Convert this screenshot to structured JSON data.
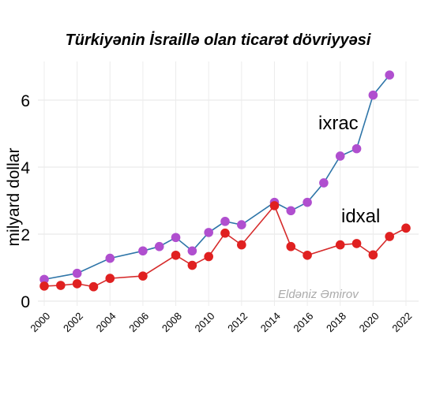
{
  "chart_data": {
    "type": "line",
    "title": "Türkiyənin İsraillə olan ticarət dövriyyəsi",
    "xlabel": "",
    "ylabel": "milyard dollar",
    "x": [
      2000,
      2001,
      2002,
      2003,
      2004,
      2005,
      2006,
      2007,
      2008,
      2009,
      2010,
      2011,
      2012,
      2013,
      2014,
      2015,
      2016,
      2017,
      2018,
      2019,
      2020,
      2021,
      2022
    ],
    "x_ticks": [
      "2000",
      "2002",
      "2004",
      "2006",
      "2008",
      "2010",
      "2012",
      "2014",
      "2016",
      "2018",
      "2020",
      "2022"
    ],
    "y_ticks": [
      "0",
      "2",
      "4",
      "6"
    ],
    "xlim": [
      2000,
      2022
    ],
    "ylim": [
      0,
      7
    ],
    "grid": true,
    "legend": "labels on chart",
    "series": [
      {
        "name": "ixrac",
        "line_color": "#2e75a8",
        "marker_color": "#b04fcf",
        "values": [
          0.65,
          null,
          0.83,
          null,
          1.28,
          null,
          1.5,
          1.63,
          1.9,
          1.5,
          2.05,
          2.38,
          2.28,
          null,
          2.95,
          2.7,
          2.95,
          3.53,
          4.33,
          4.55,
          6.15,
          6.75,
          null
        ],
        "points": [
          [
            2000,
            0.65
          ],
          [
            2002,
            0.83
          ],
          [
            2004,
            1.28
          ],
          [
            2006,
            1.5
          ],
          [
            2007,
            1.63
          ],
          [
            2008,
            1.9
          ],
          [
            2009,
            1.5
          ],
          [
            2010,
            2.05
          ],
          [
            2011,
            2.38
          ],
          [
            2012,
            2.28
          ],
          [
            2014,
            2.95
          ],
          [
            2015,
            2.7
          ],
          [
            2016,
            2.95
          ],
          [
            2017,
            3.53
          ],
          [
            2018,
            4.33
          ],
          [
            2019,
            4.55
          ],
          [
            2020,
            6.15
          ],
          [
            2021,
            6.75
          ]
        ]
      },
      {
        "name": "idxal",
        "line_color": "#d62b2b",
        "marker_color": "#e02020",
        "points": [
          [
            2000,
            0.45
          ],
          [
            2001,
            0.47
          ],
          [
            2002,
            0.52
          ],
          [
            2003,
            0.43
          ],
          [
            2004,
            0.68
          ],
          [
            2006,
            0.75
          ],
          [
            2008,
            1.37
          ],
          [
            2009,
            1.07
          ],
          [
            2010,
            1.33
          ],
          [
            2011,
            2.03
          ],
          [
            2012,
            1.68
          ],
          [
            2014,
            2.85
          ],
          [
            2015,
            1.63
          ],
          [
            2016,
            1.37
          ],
          [
            2018,
            1.68
          ],
          [
            2019,
            1.72
          ],
          [
            2020,
            1.38
          ],
          [
            2021,
            1.93
          ],
          [
            2022,
            2.18
          ]
        ]
      }
    ],
    "annotations": [
      "ixrac",
      "idxal",
      "Eldəniz Əmirov"
    ]
  }
}
